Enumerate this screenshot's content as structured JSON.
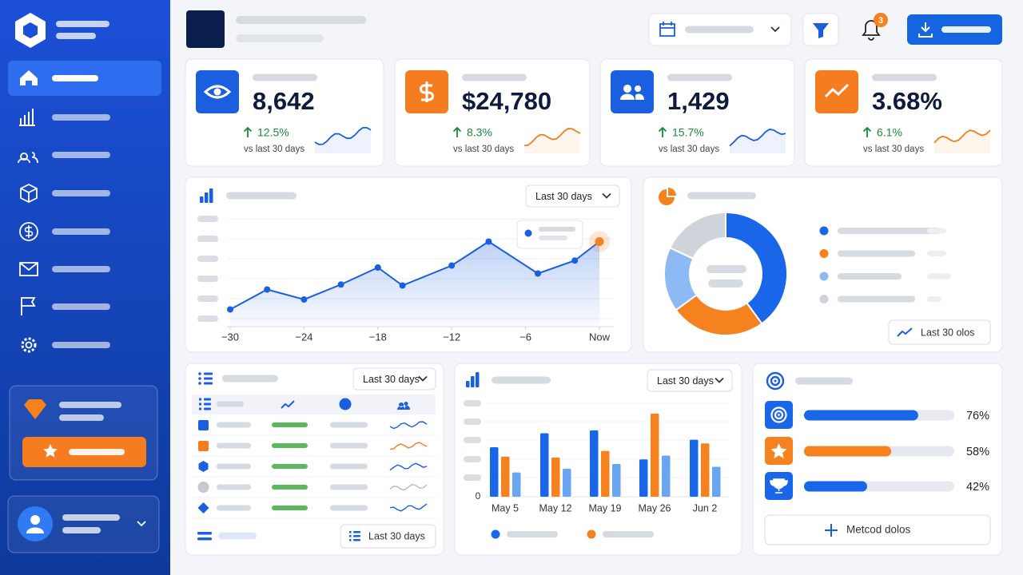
{
  "header": {
    "notification_count": "3"
  },
  "kpis": [
    {
      "value": "8,642",
      "change": "12.5%",
      "caption": "vs last 30 days"
    },
    {
      "value": "$24,780",
      "change": "8.3%",
      "caption": "vs last 30 days"
    },
    {
      "value": "1,429",
      "change": "15.7%",
      "caption": "vs last 30 days"
    },
    {
      "value": "3.68%",
      "change": "6.1%",
      "caption": "vs last 30 days"
    }
  ],
  "line_chart": {
    "type": "line",
    "range_label": "Last 30 days",
    "color": "#1a5fe0",
    "x": [
      -30,
      -27,
      -24,
      -21,
      -18,
      -16,
      -12,
      -9,
      -5,
      -2,
      0
    ],
    "values": [
      10,
      30,
      20,
      35,
      52,
      34,
      54,
      78,
      46,
      59,
      78
    ],
    "xlim": [
      -30,
      0
    ],
    "ylim": [
      0,
      100
    ],
    "xticks": [
      {
        "value": -30,
        "label": "−30"
      },
      {
        "value": -24,
        "label": "−24"
      },
      {
        "value": -18,
        "label": "−18"
      },
      {
        "value": -12,
        "label": "−12"
      },
      {
        "value": -6,
        "label": "−6"
      },
      {
        "value": 0,
        "label": "Now"
      }
    ]
  },
  "donut_chart": {
    "type": "pie",
    "values": [
      40,
      25,
      17,
      18
    ],
    "colors": [
      "#1a66e8",
      "#f5821f",
      "#8dbaf5",
      "#cfd3da"
    ],
    "button": "Last 30 olos"
  },
  "table": {
    "range_label": "Last 30 days",
    "footer_button": "Last 30 days"
  },
  "bar_chart": {
    "type": "bar",
    "range_label": "Last 30 days",
    "categories": [
      "May 5",
      "May 12",
      "May 19",
      "May 26",
      "Jun 2"
    ],
    "series": [
      {
        "color": "#1a66e8",
        "values": [
          53,
          68,
          71,
          40,
          61
        ]
      },
      {
        "color": "#f5821f",
        "values": [
          43,
          42,
          49,
          89,
          57
        ]
      },
      {
        "color": "#6aa5f2",
        "values": [
          26,
          30,
          35,
          44,
          32
        ]
      }
    ],
    "ylim": [
      0,
      100
    ],
    "yticks": [
      0
    ]
  },
  "goals": {
    "xlim": [
      0,
      100
    ],
    "items": [
      {
        "value": 76,
        "value_label": "76%",
        "color": "#1a66e8"
      },
      {
        "value": 58,
        "value_label": "58%",
        "color": "#f5821f"
      },
      {
        "value": 42,
        "value_label": "42%",
        "color": "#1a66e8"
      }
    ],
    "button": "Metcod dolos"
  }
}
